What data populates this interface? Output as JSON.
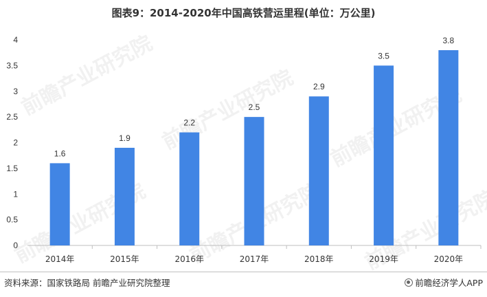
{
  "title": "图表9：2014-2020年中国高铁营运里程(单位：万公里)",
  "source": "资料来源：国家铁路局 前瞻产业研究院整理",
  "brand": "前瞻经济学人APP",
  "watermark": "前瞻产业研究院",
  "colors": {
    "bar": "#4185e4",
    "axis": "#bfbfbf",
    "text": "#333333"
  },
  "chart_data": {
    "type": "bar",
    "categories": [
      "2014年",
      "2015年",
      "2016年",
      "2017年",
      "2018年",
      "2019年",
      "2020年"
    ],
    "values": [
      1.6,
      1.9,
      2.2,
      2.5,
      2.9,
      3.5,
      3.8
    ],
    "value_labels": [
      "1.6",
      "1.9",
      "2.2",
      "2.5",
      "2.9",
      "3.5",
      "3.8"
    ],
    "yticks": [
      "0",
      "0.5",
      "1",
      "1.5",
      "2",
      "2.5",
      "3",
      "3.5",
      "4"
    ],
    "ylim": [
      0,
      4
    ],
    "grid": false,
    "xlabel": "",
    "ylabel": ""
  }
}
